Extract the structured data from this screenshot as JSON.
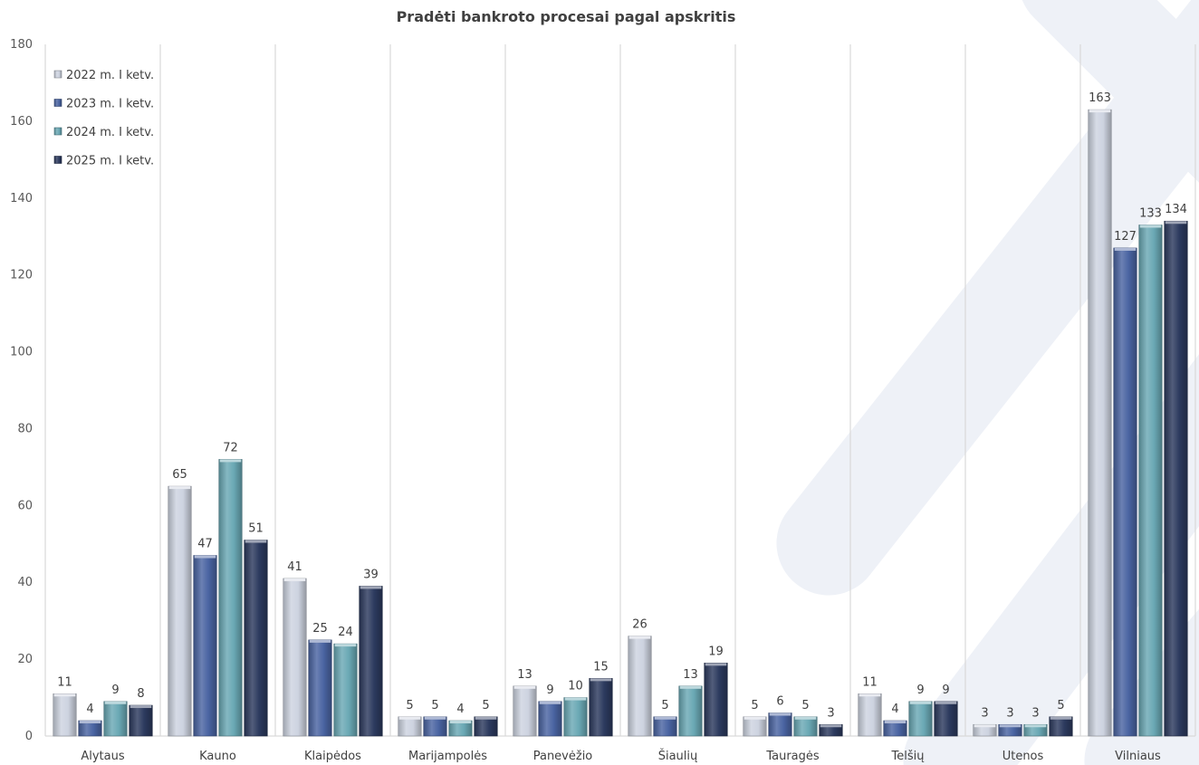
{
  "chart_data": {
    "type": "bar",
    "title": "Pradėti bankroto procesai pagal apskritis",
    "xlabel": "",
    "ylabel": "",
    "ylim": [
      0,
      180
    ],
    "yticks": [
      0,
      20,
      40,
      60,
      80,
      100,
      120,
      140,
      160,
      180
    ],
    "grid": "vertical category separators",
    "legend_position": "top-left",
    "categories": [
      "Alytaus",
      "Kauno",
      "Klaipėdos",
      "Marijampolės",
      "Panevėžio",
      "Šiaulių",
      "Tauragės",
      "Telšių",
      "Utenos",
      "Vilniaus"
    ],
    "series": [
      {
        "name": "2022 m. I ketv.",
        "color": "#cdd3e0",
        "values": [
          11,
          65,
          41,
          5,
          13,
          26,
          5,
          11,
          3,
          163
        ]
      },
      {
        "name": "2023 m. I ketv.",
        "color": "#4a64a2",
        "values": [
          4,
          47,
          25,
          5,
          9,
          5,
          6,
          4,
          3,
          127
        ]
      },
      {
        "name": "2024 m. I ketv.",
        "color": "#6aa8b4",
        "values": [
          9,
          72,
          24,
          4,
          10,
          13,
          5,
          9,
          3,
          133
        ]
      },
      {
        "name": "2025 m. I ketv.",
        "color": "#2c3a5e",
        "values": [
          8,
          51,
          39,
          5,
          15,
          19,
          3,
          9,
          5,
          134
        ]
      }
    ]
  }
}
